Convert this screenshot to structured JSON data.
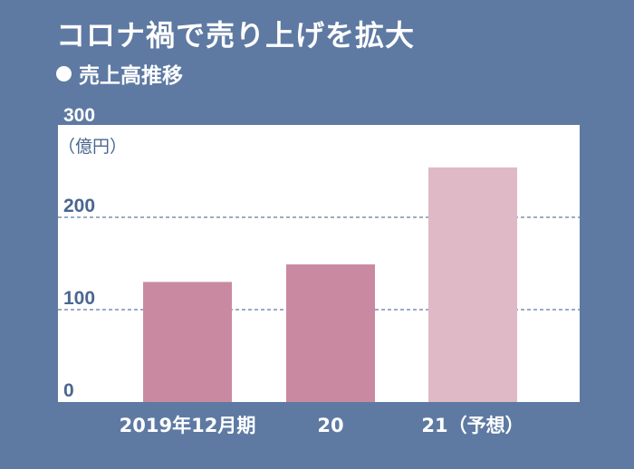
{
  "title": "コロナ禍で売り上げを拡大",
  "subtitle": "売上高推移",
  "colors": {
    "background": "#5e7aa3",
    "plot_background": "#ffffff",
    "bar_actual": "#c98aa1",
    "bar_forecast": "#e0b9c7",
    "grid": "#5e7aa3"
  },
  "chart_data": {
    "type": "bar",
    "title": "",
    "ylabel": "（億円）",
    "xlabel": "",
    "ylim": [
      0,
      300
    ],
    "yticks": [
      0,
      100,
      200,
      300
    ],
    "grid": "horizontal dashed at 100, 200",
    "categories": [
      "2019年12月期",
      "20",
      "21（予想）"
    ],
    "values": [
      130,
      149,
      254
    ],
    "forecast_flags": [
      false,
      false,
      true
    ]
  }
}
